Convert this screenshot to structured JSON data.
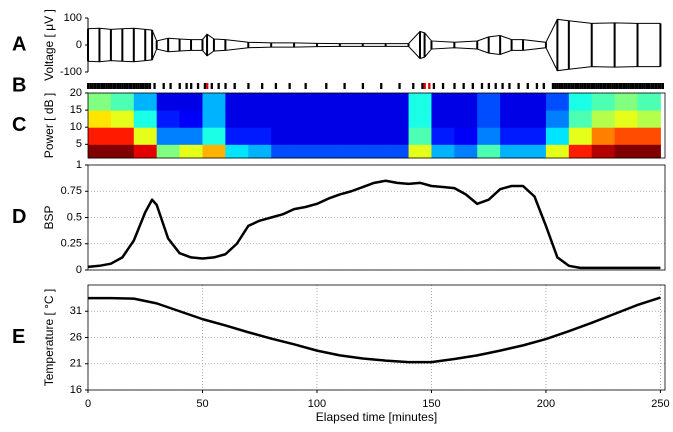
{
  "chart_data": [
    {
      "type": "envelope",
      "label": "A",
      "ylabel": "Voltage [ μV ]",
      "ylim": [
        -100,
        100
      ],
      "yticks": [
        -100,
        0,
        100
      ],
      "xlim": [
        0,
        252
      ],
      "color": "#000000",
      "x": [
        0,
        5,
        10,
        15,
        20,
        25,
        28,
        30,
        35,
        40,
        45,
        50,
        52,
        55,
        60,
        70,
        80,
        90,
        100,
        110,
        120,
        130,
        140,
        145,
        147,
        150,
        160,
        170,
        175,
        180,
        185,
        190,
        200,
        205,
        210,
        220,
        230,
        240,
        250
      ],
      "values": [
        60,
        62,
        58,
        60,
        62,
        58,
        55,
        15,
        25,
        22,
        20,
        20,
        40,
        22,
        20,
        10,
        8,
        8,
        6,
        5,
        5,
        5,
        5,
        50,
        45,
        15,
        10,
        15,
        30,
        35,
        20,
        20,
        10,
        95,
        90,
        80,
        82,
        80,
        80
      ]
    },
    {
      "type": "raster",
      "label": "B",
      "xlim": [
        0,
        252
      ],
      "series": [
        {
          "color": "#000000",
          "x": [
            0,
            1,
            2,
            3,
            4,
            5,
            6,
            7,
            8,
            9,
            10,
            11,
            12,
            13,
            14,
            15,
            16,
            17,
            18,
            19,
            20,
            21,
            22,
            23,
            24,
            25,
            26,
            27,
            29,
            33,
            36,
            40,
            43,
            45,
            48,
            51,
            54,
            57,
            60,
            64,
            70,
            76,
            82,
            88,
            95,
            104,
            112,
            120,
            128,
            136,
            142,
            146,
            151,
            155,
            160,
            164,
            168,
            172,
            175,
            178,
            181,
            184,
            188,
            192,
            196,
            199,
            203,
            204,
            205,
            206,
            207,
            208,
            209,
            210,
            211,
            212,
            213,
            214,
            215,
            216,
            217,
            218,
            219,
            220,
            221,
            222,
            223,
            224,
            225,
            226,
            227,
            228,
            229,
            230,
            231,
            232,
            233,
            234,
            235,
            236,
            237,
            238,
            239,
            240,
            241,
            242,
            243,
            244,
            245,
            246,
            247,
            248,
            249,
            250,
            251
          ]
        },
        {
          "color": "#dd0000",
          "x": [
            52,
            147,
            149
          ]
        }
      ]
    },
    {
      "type": "heatmap",
      "label": "C",
      "ylabel": "Power [ dB ]",
      "ylim": [
        1,
        20
      ],
      "yticks": [
        5,
        10,
        15,
        20
      ],
      "xlim": [
        0,
        252
      ],
      "xbins": [
        0,
        10,
        20,
        30,
        40,
        50,
        60,
        70,
        80,
        90,
        100,
        110,
        120,
        130,
        140,
        150,
        160,
        170,
        180,
        190,
        200,
        210,
        220,
        230,
        240,
        250
      ],
      "ybins": [
        1,
        5,
        10,
        15,
        20
      ],
      "values": [
        [
          1,
          0.85,
          0.65,
          0.5
        ],
        [
          1,
          0.85,
          0.6,
          0.45
        ],
        [
          0.9,
          0.6,
          0.4,
          0.3
        ],
        [
          0.5,
          0.25,
          0.15,
          0.1
        ],
        [
          0.6,
          0.25,
          0.12,
          0.1
        ],
        [
          0.7,
          0.4,
          0.3,
          0.3
        ],
        [
          0.35,
          0.15,
          0.1,
          0.1
        ],
        [
          0.3,
          0.15,
          0.1,
          0.1
        ],
        [
          0.2,
          0.1,
          0.1,
          0.1
        ],
        [
          0.2,
          0.1,
          0.1,
          0.1
        ],
        [
          0.2,
          0.1,
          0.1,
          0.1
        ],
        [
          0.2,
          0.1,
          0.1,
          0.1
        ],
        [
          0.2,
          0.1,
          0.1,
          0.1
        ],
        [
          0.2,
          0.1,
          0.1,
          0.1
        ],
        [
          0.6,
          0.45,
          0.4,
          0.4
        ],
        [
          0.3,
          0.15,
          0.1,
          0.1
        ],
        [
          0.25,
          0.12,
          0.1,
          0.1
        ],
        [
          0.45,
          0.25,
          0.2,
          0.2
        ],
        [
          0.3,
          0.15,
          0.1,
          0.1
        ],
        [
          0.3,
          0.15,
          0.1,
          0.1
        ],
        [
          0.6,
          0.35,
          0.25,
          0.2
        ],
        [
          0.85,
          0.6,
          0.45,
          0.4
        ],
        [
          0.95,
          0.75,
          0.55,
          0.45
        ],
        [
          1,
          0.8,
          0.6,
          0.5
        ],
        [
          1,
          0.8,
          0.55,
          0.45
        ]
      ]
    },
    {
      "type": "line",
      "label": "D",
      "ylabel": "BSP",
      "ylim": [
        0,
        1
      ],
      "yticks": [
        0,
        0.25,
        0.5,
        0.75,
        1
      ],
      "xlim": [
        0,
        252
      ],
      "grid": "y",
      "color": "#000000",
      "x": [
        0,
        5,
        10,
        15,
        20,
        25,
        28,
        30,
        35,
        40,
        45,
        50,
        55,
        60,
        65,
        70,
        75,
        80,
        85,
        90,
        95,
        100,
        105,
        110,
        115,
        120,
        125,
        130,
        135,
        140,
        145,
        150,
        155,
        160,
        165,
        170,
        175,
        180,
        185,
        190,
        195,
        200,
        205,
        210,
        215,
        220,
        225,
        230,
        235,
        240,
        245,
        250
      ],
      "values": [
        0.03,
        0.04,
        0.06,
        0.12,
        0.28,
        0.55,
        0.67,
        0.62,
        0.3,
        0.16,
        0.12,
        0.11,
        0.12,
        0.15,
        0.25,
        0.42,
        0.47,
        0.5,
        0.53,
        0.58,
        0.6,
        0.63,
        0.68,
        0.72,
        0.75,
        0.79,
        0.83,
        0.85,
        0.83,
        0.82,
        0.83,
        0.8,
        0.79,
        0.78,
        0.72,
        0.63,
        0.67,
        0.77,
        0.8,
        0.8,
        0.7,
        0.42,
        0.12,
        0.04,
        0.02,
        0.02,
        0.02,
        0.02,
        0.02,
        0.02,
        0.02,
        0.02
      ]
    },
    {
      "type": "line",
      "label": "E",
      "ylabel": "Temperature [ °C ]",
      "xlabel": "Elapsed time [minutes]",
      "ylim": [
        16,
        36
      ],
      "yticks": [
        16,
        21,
        26,
        31
      ],
      "xlim": [
        0,
        252
      ],
      "xticks": [
        0,
        50,
        100,
        150,
        200,
        250
      ],
      "grid": "both",
      "color": "#000000",
      "x": [
        0,
        10,
        20,
        30,
        40,
        50,
        60,
        70,
        80,
        90,
        100,
        110,
        120,
        130,
        140,
        150,
        160,
        170,
        180,
        190,
        200,
        210,
        220,
        230,
        240,
        250
      ],
      "values": [
        33.5,
        33.5,
        33.4,
        32.5,
        31,
        29.5,
        28.3,
        27,
        25.8,
        24.7,
        23.5,
        22.6,
        22,
        21.6,
        21.3,
        21.3,
        21.9,
        22.6,
        23.5,
        24.5,
        25.7,
        27.2,
        28.8,
        30.5,
        32.2,
        33.6
      ]
    }
  ]
}
